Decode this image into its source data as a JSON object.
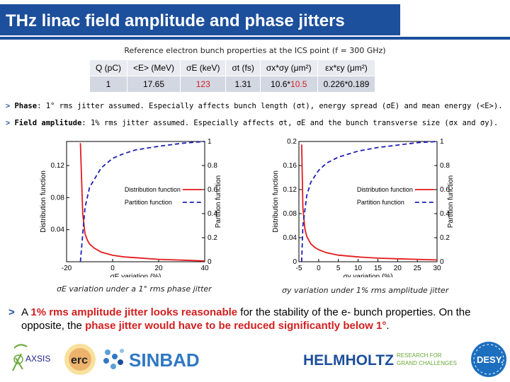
{
  "title": "THz linac field amplitude and phase jitters",
  "table": {
    "caption": "Reference electron bunch properties at the ICS point (f = 300 GHz)",
    "headers": [
      "Q (pC)",
      "<E> (MeV)",
      "σE (keV)",
      "σt (fs)",
      "σx*σy (μm²)",
      "εx*εy (μm²)"
    ],
    "row": {
      "q": "1",
      "e": "17.65",
      "sigmaE": "123",
      "sigmaT": "1.31",
      "sxsy_a": "10.6*",
      "sxsy_b": "10.5",
      "exey": "0.226*0.189"
    }
  },
  "bullets": {
    "phase_label": "Phase",
    "phase_text": ": 1° rms jitter assumed. Especially affects bunch length (σt), energy spread (σE) and mean energy (<E>).",
    "field_label": "Field amplitude",
    "field_text": ": 1% rms jitter assumed. Especially affects σt, σE and the bunch transverse size (σx and σy)."
  },
  "charts": {
    "left_caption": "σE variation under a 1° rms phase jitter",
    "right_caption": "σy variation under 1% rms amplitude jitter",
    "legend_dist": "Distribution function",
    "legend_part": "Partition function",
    "ylabel_left": "Distribution function",
    "ylabel_right": "Partition function"
  },
  "chart_data": [
    {
      "type": "line",
      "xlabel": "σE variation (%)",
      "ylabel": "Distribution function",
      "ylabel_right": "Partition function",
      "xlim": [
        -20,
        40
      ],
      "ylim": [
        0,
        0.15
      ],
      "ylim_right": [
        0,
        1
      ],
      "x_ticks": [
        -20,
        0,
        20,
        40
      ],
      "y_ticks": [
        0.04,
        0.08,
        0.12
      ],
      "y_ticks_right": [
        0,
        0.2,
        0.4,
        0.6,
        0.8,
        1
      ],
      "legend": "center-right",
      "series": [
        {
          "name": "Distribution function",
          "color": "#e41a1c",
          "style": "solid",
          "x": [
            -14,
            -13,
            -12,
            -11,
            -10,
            -8,
            -5,
            0,
            5,
            10,
            20,
            30,
            40
          ],
          "y": [
            0.148,
            0.06,
            0.035,
            0.027,
            0.022,
            0.017,
            0.012,
            0.008,
            0.006,
            0.005,
            0.003,
            0.002,
            0.001
          ]
        },
        {
          "name": "Partition function",
          "color": "#1f1fb4",
          "style": "dashed",
          "x": [
            -14,
            -12,
            -10,
            -5,
            0,
            5,
            10,
            20,
            30,
            40
          ],
          "y": [
            0.0,
            0.45,
            0.62,
            0.78,
            0.86,
            0.9,
            0.93,
            0.96,
            0.985,
            1.0
          ]
        }
      ]
    },
    {
      "type": "line",
      "xlabel": "σy variation (%)",
      "ylabel": "Distribution function",
      "ylabel_right": "Partition function",
      "xlim": [
        -5,
        30
      ],
      "ylim": [
        0,
        0.2
      ],
      "ylim_right": [
        0,
        1
      ],
      "x_ticks": [
        -5,
        0,
        5,
        10,
        15,
        20,
        25,
        30
      ],
      "y_ticks": [
        0,
        0.04,
        0.08,
        0.12,
        0.16,
        0.2
      ],
      "y_ticks_right": [
        0,
        0.2,
        0.4,
        0.6,
        0.8,
        1
      ],
      "legend": "center-right",
      "series": [
        {
          "name": "Distribution function",
          "color": "#e41a1c",
          "style": "solid",
          "x": [
            -4.3,
            -4,
            -3.5,
            -3,
            -2,
            -1,
            0,
            2,
            5,
            10,
            15,
            20,
            25,
            30
          ],
          "y": [
            0.195,
            0.09,
            0.055,
            0.042,
            0.03,
            0.024,
            0.02,
            0.015,
            0.011,
            0.008,
            0.006,
            0.005,
            0.004,
            0.003
          ]
        },
        {
          "name": "Partition function",
          "color": "#1f1fb4",
          "style": "dashed",
          "x": [
            -4.3,
            -4,
            -3,
            -2,
            0,
            2,
            5,
            10,
            15,
            20,
            25,
            30
          ],
          "y": [
            0.0,
            0.3,
            0.55,
            0.66,
            0.76,
            0.82,
            0.87,
            0.92,
            0.95,
            0.97,
            0.99,
            1.0
          ]
        }
      ]
    }
  ],
  "conclusion": {
    "part1": "A ",
    "part2": "1% rms amplitude jitter looks reasonable",
    "part3": " for the stability of the e- bunch properties. On the opposite, the ",
    "part4": "phase jitter would have to be reduced significantly below 1°",
    "part5": "."
  },
  "logos": {
    "axsis": "AXSIS",
    "erc": "erc",
    "sinbad": "SINBAD",
    "helmholtz": "HELMHOLTZ",
    "helmholtz_sub1": "RESEARCH FOR",
    "helmholtz_sub2": "GRAND CHALLENGES",
    "desy": "DESY."
  },
  "colors": {
    "brand_blue": "#1c4f9c",
    "red": "#d22020",
    "table_header": "#e9ebf1",
    "table_cell": "#d3d7e2"
  }
}
